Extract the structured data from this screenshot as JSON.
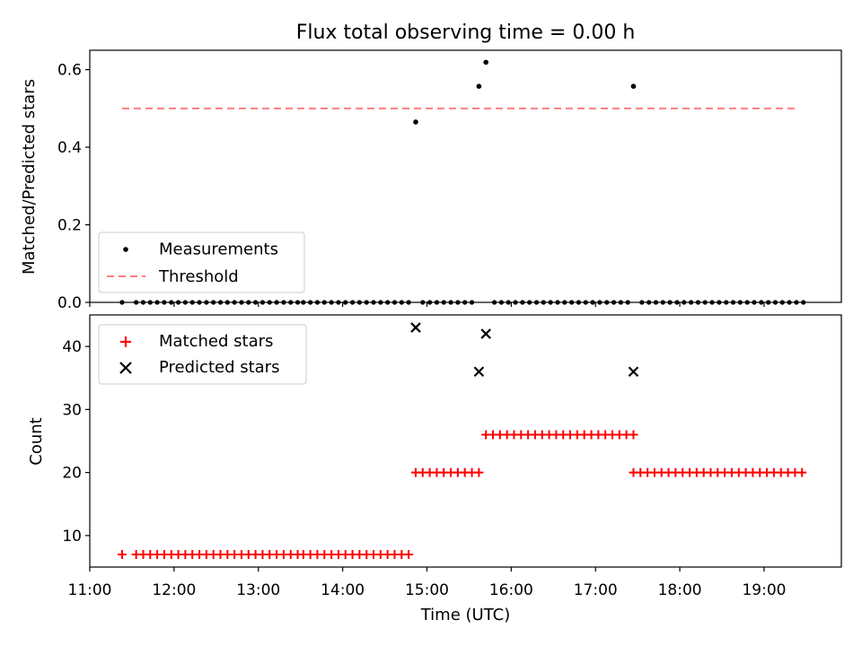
{
  "title": "Flux total observing time = 0.00 h",
  "colors": {
    "measurement": "#000000",
    "threshold": "#ff7f7f",
    "matched": "#ff0000",
    "predicted": "#000000"
  },
  "chart_data": [
    {
      "type": "scatter",
      "title": "Flux total observing time = 0.00 h",
      "xlabel": "",
      "ylabel": "Matched/Predicted stars",
      "xlim": [
        "11:00",
        "19:55"
      ],
      "ylim": [
        0,
        0.65
      ],
      "yticks": [
        0.0,
        0.2,
        0.4,
        0.6
      ],
      "yticklabels": [
        "0.0",
        "0.2",
        "0.4",
        "0.6"
      ],
      "legend": {
        "placement": "lower-left",
        "entries": [
          "Measurements",
          "Threshold"
        ]
      },
      "threshold": {
        "name": "Threshold",
        "value": 0.5,
        "x_start": "11:23",
        "x_end": "19:23"
      },
      "series": [
        {
          "name": "Measurements",
          "zero_ranges": [
            {
              "start": "11:23",
              "end": "11:23",
              "step_min": 5
            },
            {
              "start": "11:33",
              "end": "13:30",
              "step_min": 5
            },
            {
              "start": "13:32",
              "end": "14:48",
              "step_min": 5
            },
            {
              "start": "14:57",
              "end": "15:32",
              "step_min": 5
            },
            {
              "start": "15:48",
              "end": "17:23",
              "step_min": 5
            },
            {
              "start": "17:33",
              "end": "19:28",
              "step_min": 5
            }
          ],
          "points": [
            {
              "x": "14:52",
              "y": 0.465
            },
            {
              "x": "15:37",
              "y": 0.557
            },
            {
              "x": "15:42",
              "y": 0.619
            },
            {
              "x": "17:27",
              "y": 0.557
            }
          ]
        }
      ]
    },
    {
      "type": "scatter",
      "xlabel": "Time (UTC)",
      "ylabel": "Count",
      "xlim": [
        "11:00",
        "19:55"
      ],
      "ylim": [
        5,
        45
      ],
      "yticks": [
        10,
        20,
        30,
        40
      ],
      "yticklabels": [
        "10",
        "20",
        "30",
        "40"
      ],
      "xticks": [
        "11:00",
        "12:00",
        "13:00",
        "14:00",
        "15:00",
        "16:00",
        "17:00",
        "18:00",
        "19:00"
      ],
      "legend": {
        "placement": "upper-left",
        "entries": [
          "Matched stars",
          "Predicted stars"
        ]
      },
      "series": [
        {
          "name": "Matched stars",
          "ranges": [
            {
              "start": "11:23",
              "end": "11:23",
              "step_min": 5,
              "y": 7
            },
            {
              "start": "11:33",
              "end": "13:30",
              "step_min": 5,
              "y": 7
            },
            {
              "start": "13:32",
              "end": "14:48",
              "step_min": 5,
              "y": 7
            },
            {
              "start": "14:52",
              "end": "15:37",
              "step_min": 5,
              "y": 20
            },
            {
              "start": "15:42",
              "end": "17:27",
              "step_min": 5,
              "y": 26
            },
            {
              "start": "17:27",
              "end": "19:28",
              "step_min": 5,
              "y": 20
            }
          ]
        },
        {
          "name": "Predicted stars",
          "points": [
            {
              "x": "14:52",
              "y": 43
            },
            {
              "x": "15:37",
              "y": 36
            },
            {
              "x": "15:42",
              "y": 42
            },
            {
              "x": "17:27",
              "y": 36
            }
          ]
        }
      ]
    }
  ]
}
